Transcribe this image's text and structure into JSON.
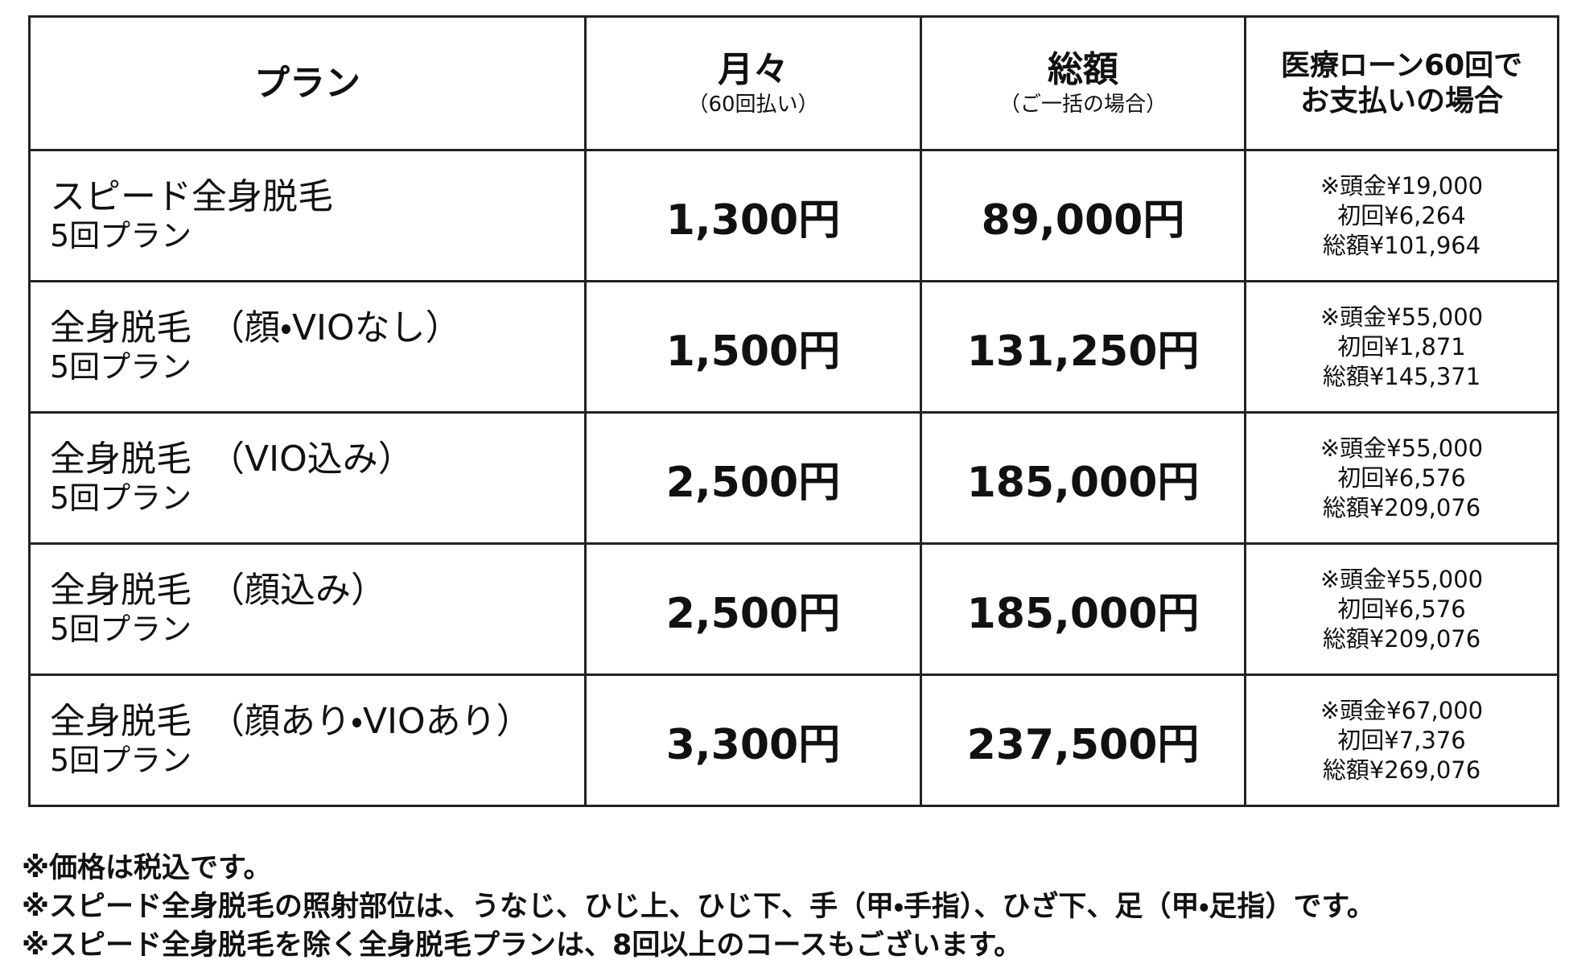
{
  "table": {
    "header": {
      "plan": "プラン",
      "monthly": {
        "title": "月々",
        "sub": "（60回払い）"
      },
      "total": {
        "title": "総額",
        "sub": "（ご一括の場合）"
      },
      "loan": [
        "医療ローン60回で",
        "お支払いの場合"
      ]
    },
    "rows": [
      {
        "plan": [
          "スピード全身脱毛",
          "5回プラン"
        ],
        "monthly": "1,300円",
        "total": "89,000円",
        "loan": [
          "※頭金¥19,000",
          "初回¥6,264",
          "総額¥101,964"
        ]
      },
      {
        "plan": [
          "全身脱毛　（顔・VIOなし）",
          "5回プラン"
        ],
        "monthly": "1,500円",
        "total": "131,250円",
        "loan": [
          "※頭金¥55,000",
          "初回¥1,871",
          "総額¥145,371"
        ]
      },
      {
        "plan": [
          "全身脱毛　（VIO込み）",
          "5回プラン"
        ],
        "monthly": "2,500円",
        "total": "185,000円",
        "loan": [
          "※頭金¥55,000",
          "初回¥6,576",
          "総額¥209,076"
        ]
      },
      {
        "plan": [
          "全身脱毛　（顔込み）",
          "5回プラン"
        ],
        "monthly": "2,500円",
        "total": "185,000円",
        "loan": [
          "※頭金¥55,000",
          "初回¥6,576",
          "総額¥209,076"
        ]
      },
      {
        "plan": [
          "全身脱毛　（顔あり・VIOあり）",
          "5回プラン"
        ],
        "monthly": "3,300円",
        "total": "237,500円",
        "loan": [
          "※頭金¥67,000",
          "初回¥7,376",
          "総額¥269,076"
        ]
      }
    ]
  },
  "notes": [
    "※価格は税込です。",
    "※スピード全身脱毛の照射部位は、うなじ、ひじ上、ひじ下、手（甲・手指）、ひざ下、足（甲・足指）です。",
    "※スピード全身脱毛を除く全身脱毛プランは、8回以上のコースもございます。"
  ]
}
